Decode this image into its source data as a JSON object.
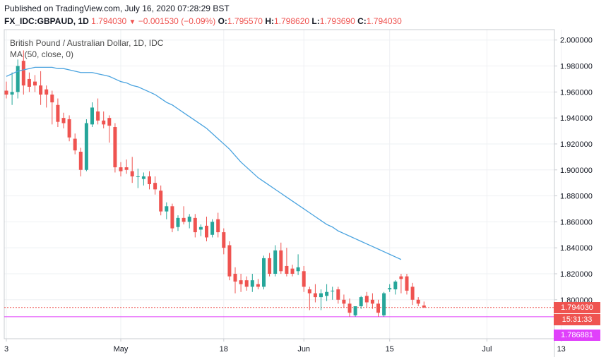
{
  "header": {
    "published": "Published on TradingView.com, July 16, 2020 07:28:29 BST",
    "symbol": "FX_IDC:GBPAUD, 1D",
    "last": "1.794030",
    "change": "−0.001530 (−0.09%)",
    "o_label": "O:",
    "o": "1.795570",
    "h_label": "H:",
    "h": "1.798620",
    "l_label": "L:",
    "l": "1.793690",
    "c_label": "C:",
    "c": "1.794030"
  },
  "legend": {
    "title": "British Pound / Australian Dollar, 1D, IDC",
    "ma": "MA (50, close, 0)"
  },
  "price_tags": {
    "last_price": "1.794030",
    "countdown": "15:31:33",
    "horizontal_level": "1.786881"
  },
  "colors": {
    "up": "#26a69a",
    "down": "#ef5350",
    "ma": "#4aa3df",
    "level": "#e040fb",
    "grid": "#eef0f3"
  },
  "chart_data": {
    "type": "candlestick",
    "title": "British Pound / Australian Dollar, 1D, IDC",
    "ylim": [
      1.77,
      2.008
    ],
    "yticks": [
      1.8,
      1.82,
      1.84,
      1.86,
      1.88,
      1.9,
      1.92,
      1.94,
      1.96,
      1.98,
      2.0
    ],
    "ytick_labels": [
      "1.800000",
      "1.820000",
      "1.840000",
      "1.860000",
      "1.880000",
      "1.900000",
      "1.920000",
      "1.940000",
      "1.960000",
      "1.980000",
      "2.000000"
    ],
    "x_labels": [
      {
        "index": 0,
        "label": "3"
      },
      {
        "index": 20,
        "label": "May"
      },
      {
        "index": 38,
        "label": "18"
      },
      {
        "index": 52,
        "label": "Jun"
      },
      {
        "index": 67,
        "label": "15"
      },
      {
        "index": 84,
        "label": "Jul"
      },
      {
        "index": 97,
        "label": "13"
      }
    ],
    "candles": [
      {
        "o": 1.961,
        "h": 1.968,
        "l": 1.955,
        "c": 1.958
      },
      {
        "o": 1.958,
        "h": 1.975,
        "l": 1.95,
        "c": 1.96
      },
      {
        "o": 1.96,
        "h": 1.985,
        "l": 1.955,
        "c": 1.98
      },
      {
        "o": 1.984,
        "h": 1.992,
        "l": 1.958,
        "c": 1.965
      },
      {
        "o": 1.97,
        "h": 1.975,
        "l": 1.96,
        "c": 1.964
      },
      {
        "o": 1.968,
        "h": 1.973,
        "l": 1.96,
        "c": 1.965
      },
      {
        "o": 1.965,
        "h": 1.976,
        "l": 1.95,
        "c": 1.958
      },
      {
        "o": 1.962,
        "h": 1.965,
        "l": 1.948,
        "c": 1.958
      },
      {
        "o": 1.958,
        "h": 1.961,
        "l": 1.935,
        "c": 1.952
      },
      {
        "o": 1.95,
        "h": 1.955,
        "l": 1.933,
        "c": 1.937
      },
      {
        "o": 1.94,
        "h": 1.944,
        "l": 1.932,
        "c": 1.936
      },
      {
        "o": 1.939,
        "h": 1.942,
        "l": 1.922,
        "c": 1.925
      },
      {
        "o": 1.924,
        "h": 1.928,
        "l": 1.912,
        "c": 1.915
      },
      {
        "o": 1.914,
        "h": 1.917,
        "l": 1.895,
        "c": 1.9
      },
      {
        "o": 1.9,
        "h": 1.939,
        "l": 1.899,
        "c": 1.936
      },
      {
        "o": 1.935,
        "h": 1.952,
        "l": 1.933,
        "c": 1.948
      },
      {
        "o": 1.945,
        "h": 1.955,
        "l": 1.935,
        "c": 1.938
      },
      {
        "o": 1.938,
        "h": 1.945,
        "l": 1.932,
        "c": 1.935
      },
      {
        "o": 1.94,
        "h": 1.942,
        "l": 1.921,
        "c": 1.934
      },
      {
        "o": 1.933,
        "h": 1.936,
        "l": 1.898,
        "c": 1.902
      },
      {
        "o": 1.902,
        "h": 1.906,
        "l": 1.895,
        "c": 1.899
      },
      {
        "o": 1.902,
        "h": 1.908,
        "l": 1.897,
        "c": 1.9
      },
      {
        "o": 1.899,
        "h": 1.91,
        "l": 1.89,
        "c": 1.895
      },
      {
        "o": 1.895,
        "h": 1.901,
        "l": 1.886,
        "c": 1.895
      },
      {
        "o": 1.893,
        "h": 1.898,
        "l": 1.888,
        "c": 1.895
      },
      {
        "o": 1.895,
        "h": 1.899,
        "l": 1.885,
        "c": 1.889
      },
      {
        "o": 1.89,
        "h": 1.895,
        "l": 1.881,
        "c": 1.885
      },
      {
        "o": 1.884,
        "h": 1.888,
        "l": 1.865,
        "c": 1.868
      },
      {
        "o": 1.868,
        "h": 1.875,
        "l": 1.862,
        "c": 1.872
      },
      {
        "o": 1.872,
        "h": 1.874,
        "l": 1.852,
        "c": 1.855
      },
      {
        "o": 1.856,
        "h": 1.865,
        "l": 1.853,
        "c": 1.863
      },
      {
        "o": 1.863,
        "h": 1.872,
        "l": 1.858,
        "c": 1.86
      },
      {
        "o": 1.86,
        "h": 1.866,
        "l": 1.855,
        "c": 1.864
      },
      {
        "o": 1.863,
        "h": 1.866,
        "l": 1.848,
        "c": 1.852
      },
      {
        "o": 1.854,
        "h": 1.858,
        "l": 1.849,
        "c": 1.856
      },
      {
        "o": 1.857,
        "h": 1.864,
        "l": 1.845,
        "c": 1.848
      },
      {
        "o": 1.85,
        "h": 1.862,
        "l": 1.848,
        "c": 1.86
      },
      {
        "o": 1.862,
        "h": 1.867,
        "l": 1.848,
        "c": 1.852
      },
      {
        "o": 1.852,
        "h": 1.855,
        "l": 1.835,
        "c": 1.84
      },
      {
        "o": 1.842,
        "h": 1.845,
        "l": 1.815,
        "c": 1.818
      },
      {
        "o": 1.82,
        "h": 1.825,
        "l": 1.805,
        "c": 1.814
      },
      {
        "o": 1.815,
        "h": 1.82,
        "l": 1.806,
        "c": 1.812
      },
      {
        "o": 1.815,
        "h": 1.818,
        "l": 1.807,
        "c": 1.81
      },
      {
        "o": 1.81,
        "h": 1.82,
        "l": 1.806,
        "c": 1.815
      },
      {
        "o": 1.812,
        "h": 1.816,
        "l": 1.808,
        "c": 1.81
      },
      {
        "o": 1.81,
        "h": 1.834,
        "l": 1.808,
        "c": 1.832
      },
      {
        "o": 1.832,
        "h": 1.836,
        "l": 1.818,
        "c": 1.82
      },
      {
        "o": 1.82,
        "h": 1.842,
        "l": 1.818,
        "c": 1.838
      },
      {
        "o": 1.838,
        "h": 1.844,
        "l": 1.82,
        "c": 1.822
      },
      {
        "o": 1.826,
        "h": 1.84,
        "l": 1.818,
        "c": 1.82
      },
      {
        "o": 1.824,
        "h": 1.827,
        "l": 1.818,
        "c": 1.82
      },
      {
        "o": 1.822,
        "h": 1.835,
        "l": 1.819,
        "c": 1.825
      },
      {
        "o": 1.822,
        "h": 1.826,
        "l": 1.806,
        "c": 1.81
      },
      {
        "o": 1.808,
        "h": 1.81,
        "l": 1.792,
        "c": 1.805
      },
      {
        "o": 1.805,
        "h": 1.812,
        "l": 1.798,
        "c": 1.802
      },
      {
        "o": 1.802,
        "h": 1.808,
        "l": 1.792,
        "c": 1.805
      },
      {
        "o": 1.803,
        "h": 1.812,
        "l": 1.799,
        "c": 1.806
      },
      {
        "o": 1.807,
        "h": 1.81,
        "l": 1.8,
        "c": 1.807
      },
      {
        "o": 1.808,
        "h": 1.81,
        "l": 1.797,
        "c": 1.8
      },
      {
        "o": 1.8,
        "h": 1.804,
        "l": 1.794,
        "c": 1.797
      },
      {
        "o": 1.797,
        "h": 1.801,
        "l": 1.787,
        "c": 1.79
      },
      {
        "o": 1.788,
        "h": 1.795,
        "l": 1.787,
        "c": 1.795
      },
      {
        "o": 1.795,
        "h": 1.803,
        "l": 1.793,
        "c": 1.802
      },
      {
        "o": 1.803,
        "h": 1.806,
        "l": 1.794,
        "c": 1.798
      },
      {
        "o": 1.8,
        "h": 1.805,
        "l": 1.793,
        "c": 1.797
      },
      {
        "o": 1.797,
        "h": 1.8,
        "l": 1.787,
        "c": 1.79
      },
      {
        "o": 1.788,
        "h": 1.806,
        "l": 1.787,
        "c": 1.805
      },
      {
        "o": 1.808,
        "h": 1.812,
        "l": 1.806,
        "c": 1.809
      },
      {
        "o": 1.808,
        "h": 1.815,
        "l": 1.804,
        "c": 1.814
      },
      {
        "o": 1.818,
        "h": 1.82,
        "l": 1.805,
        "c": 1.816
      },
      {
        "o": 1.818,
        "h": 1.82,
        "l": 1.804,
        "c": 1.807
      },
      {
        "o": 1.81,
        "h": 1.813,
        "l": 1.796,
        "c": 1.8
      },
      {
        "o": 1.8,
        "h": 1.802,
        "l": 1.795,
        "c": 1.797
      },
      {
        "o": 1.7956,
        "h": 1.7986,
        "l": 1.7937,
        "c": 1.794
      }
    ],
    "ma50": [
      1.972,
      1.974,
      1.976,
      1.977,
      1.978,
      1.979,
      1.979,
      1.979,
      1.979,
      1.978,
      1.978,
      1.977,
      1.976,
      1.975,
      1.975,
      1.975,
      1.974,
      1.973,
      1.972,
      1.97,
      1.968,
      1.967,
      1.965,
      1.964,
      1.962,
      1.96,
      1.958,
      1.955,
      1.952,
      1.95,
      1.947,
      1.944,
      1.941,
      1.938,
      1.935,
      1.932,
      1.928,
      1.924,
      1.92,
      1.916,
      1.911,
      1.906,
      1.902,
      1.898,
      1.894,
      1.891,
      1.888,
      1.885,
      1.882,
      1.879,
      1.876,
      1.873,
      1.87,
      1.867,
      1.864,
      1.861,
      1.858,
      1.856,
      1.853,
      1.851,
      1.849,
      1.847,
      1.845,
      1.843,
      1.841,
      1.839,
      1.837,
      1.835,
      1.833,
      1.831
    ]
  }
}
